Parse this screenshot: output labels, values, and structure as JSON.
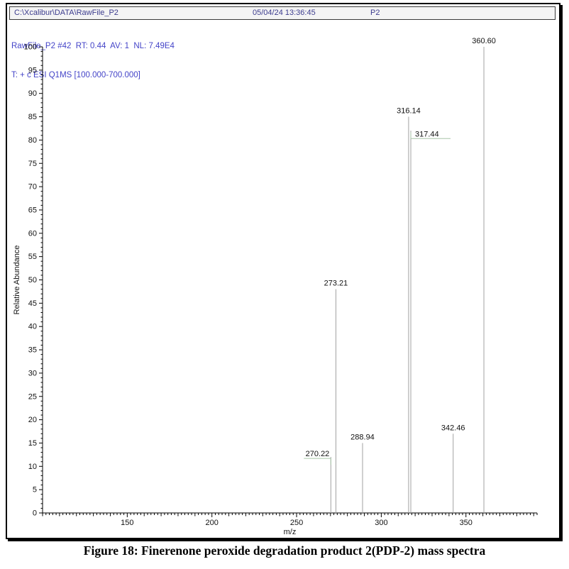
{
  "window": {
    "titlebar": {
      "path": "C:\\Xcalibur\\DATA\\RawFile_P2",
      "datetime": "05/04/24 13:36:45",
      "sample": "P2"
    },
    "scan_header": {
      "line1": "RawFile_P2 #42  RT: 0.44  AV: 1  NL: 7.49E4",
      "line2": "T: + c ESI Q1MS [100.000-700.000]"
    }
  },
  "chart_data": {
    "type": "bar",
    "subtype": "mass-spectrum",
    "title": "",
    "xlabel": "m/z",
    "ylabel": "Relative Abundance",
    "xlim": [
      100,
      392
    ],
    "ylim": [
      0,
      100
    ],
    "x_major_ticks": [
      150,
      200,
      250,
      300,
      350
    ],
    "x_minor_step": 2,
    "x_medium_step": 10,
    "y_major_step": 5,
    "y_minor_step": 1,
    "grid": false,
    "legend": "none",
    "peaks": [
      {
        "mz": 270.22,
        "intensity": 12,
        "label": "270.22",
        "label_placement": "elbow-left"
      },
      {
        "mz": 273.21,
        "intensity": 48,
        "label": "273.21",
        "label_placement": "above"
      },
      {
        "mz": 288.94,
        "intensity": 15,
        "label": "288.94",
        "label_placement": "above"
      },
      {
        "mz": 316.14,
        "intensity": 85,
        "label": "316.14",
        "label_placement": "above"
      },
      {
        "mz": 317.44,
        "intensity": 82,
        "label": "317.44",
        "label_placement": "elbow-right"
      },
      {
        "mz": 342.46,
        "intensity": 17,
        "label": "342.46",
        "label_placement": "above"
      },
      {
        "mz": 360.6,
        "intensity": 100,
        "label": "360.60",
        "label_placement": "above"
      }
    ]
  },
  "caption": "Figure 18: Finerenone peroxide degradation product 2(PDP-2) mass spectra",
  "colors": {
    "header_text": "#3c3c8e",
    "scan_text": "#4444c8",
    "peak_line": "#a1a1a1",
    "leader_line": "#a9c6a9",
    "axis": "#000000",
    "peak_label_text": "#222222"
  }
}
